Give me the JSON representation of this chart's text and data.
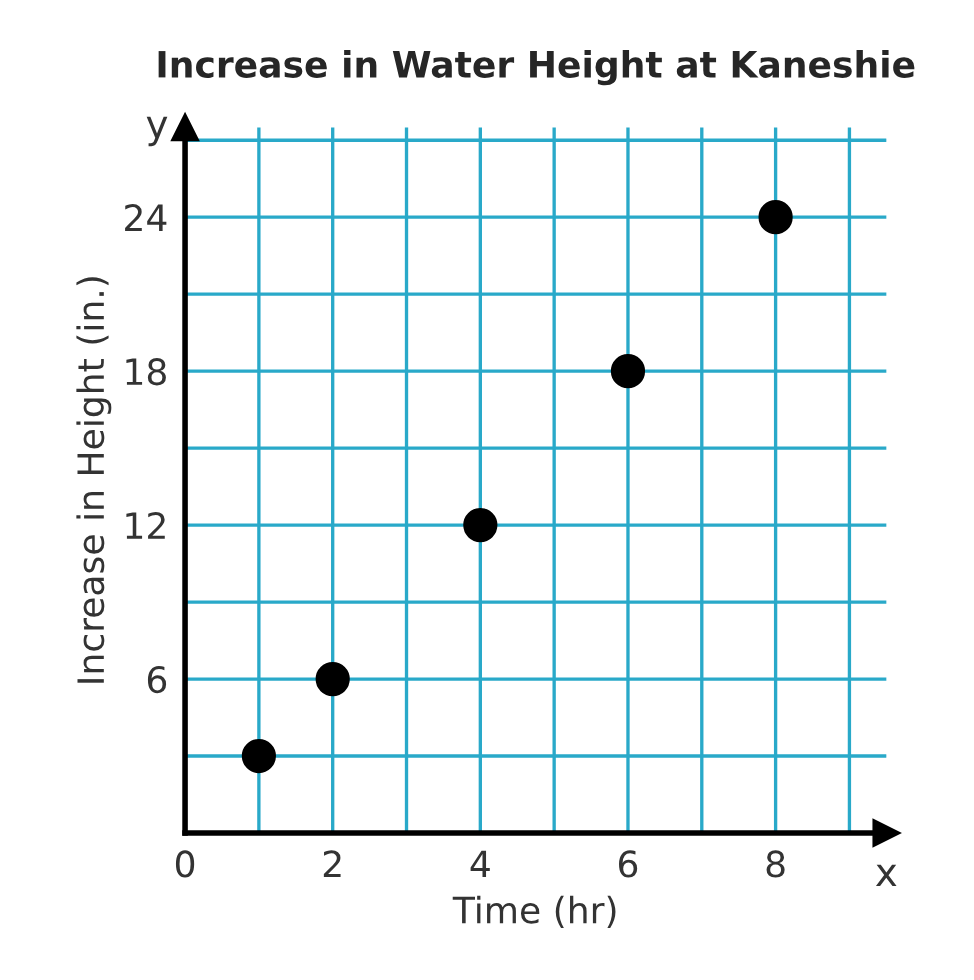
{
  "chart_data": {
    "type": "scatter",
    "title": "Increase in Water Height at Kaneshie",
    "xlabel": "Time (hr)",
    "ylabel": "Increase in Height (in.)",
    "x": [
      1,
      2,
      4,
      6,
      8
    ],
    "series": [
      {
        "color": "#000000",
        "values": [
          3,
          6,
          12,
          18,
          24
        ]
      }
    ],
    "xlim": [
      0,
      9.5
    ],
    "ylim": [
      0,
      27.5
    ],
    "xticks": [
      {
        "value": 0,
        "label": "0"
      },
      {
        "value": 1,
        "label": null
      },
      2,
      {
        "value": 3,
        "label": null
      },
      4,
      {
        "value": 5,
        "label": null
      },
      6,
      {
        "value": 7,
        "label": null
      },
      8,
      {
        "value": 9,
        "label": null
      }
    ],
    "yticks": [
      {
        "value": 3,
        "label": null
      },
      6,
      {
        "value": 9,
        "label": null
      },
      12,
      {
        "value": 15,
        "label": null
      },
      18,
      {
        "value": 21,
        "label": null
      },
      24,
      {
        "value": 27,
        "label": null
      }
    ],
    "grid": true,
    "marker": "circle",
    "annotations": [
      "x",
      "y"
    ]
  }
}
